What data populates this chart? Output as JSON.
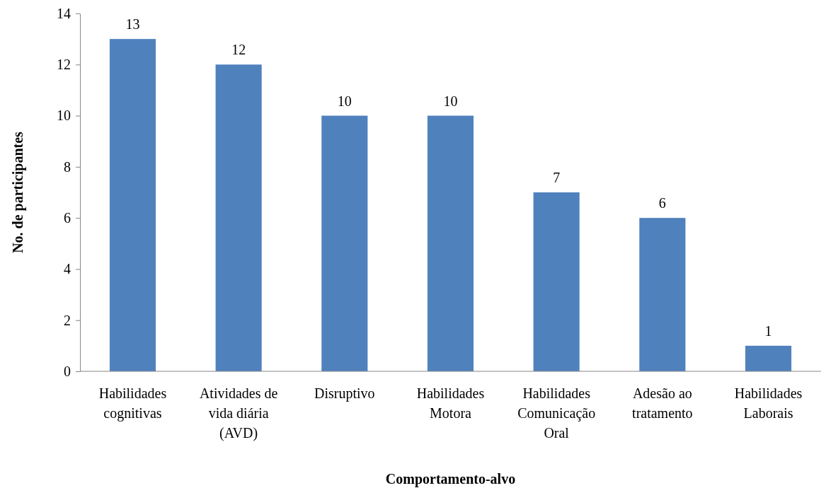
{
  "chart_data": {
    "type": "bar",
    "xlabel": "Comportamento-alvo",
    "ylabel": "No. de participantes",
    "categories": [
      "Habilidades cognitivas",
      "Atividades de vida diária (AVD)",
      "Disruptivo",
      "Habilidades Motora",
      "Habilidades Comunicação Oral",
      "Adesão ao tratamento",
      "Habilidades Laborais"
    ],
    "values": [
      13,
      12,
      10,
      10,
      7,
      6,
      1
    ],
    "color": "#4f81bd",
    "ylim": [
      0,
      14
    ],
    "yticks": [
      0,
      2,
      4,
      6,
      8,
      10,
      12,
      14
    ],
    "grid": false,
    "data_labels": true
  }
}
